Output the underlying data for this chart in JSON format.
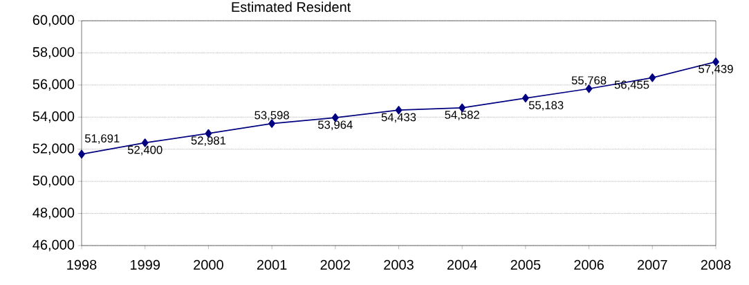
{
  "chart_data": {
    "type": "line",
    "title": "Estimated Resident",
    "categories": [
      "1998",
      "1999",
      "2000",
      "2001",
      "2002",
      "2003",
      "2004",
      "2005",
      "2006",
      "2007",
      "2008"
    ],
    "values": [
      51691,
      52400,
      52981,
      53598,
      53964,
      54433,
      54582,
      55183,
      55768,
      56455,
      57439
    ],
    "value_labels": [
      "51,691",
      "52,400",
      "52,981",
      "53,598",
      "53,964",
      "54,433",
      "54,582",
      "55,183",
      "55,768",
      "56,455",
      "57,439"
    ],
    "color": "#000080",
    "marker": "diamond",
    "line_style": "solid",
    "grid": "y",
    "ylim": [
      46000,
      60000
    ],
    "yticks": [
      {
        "value": 46000,
        "label": "46,000"
      },
      {
        "value": 48000,
        "label": "48,000"
      },
      {
        "value": 50000,
        "label": "50,000"
      },
      {
        "value": 52000,
        "label": "52,000"
      },
      {
        "value": 54000,
        "label": "54,000"
      },
      {
        "value": 56000,
        "label": "56,000"
      },
      {
        "value": 58000,
        "label": "58,000"
      },
      {
        "value": 60000,
        "label": "60,000"
      }
    ]
  }
}
